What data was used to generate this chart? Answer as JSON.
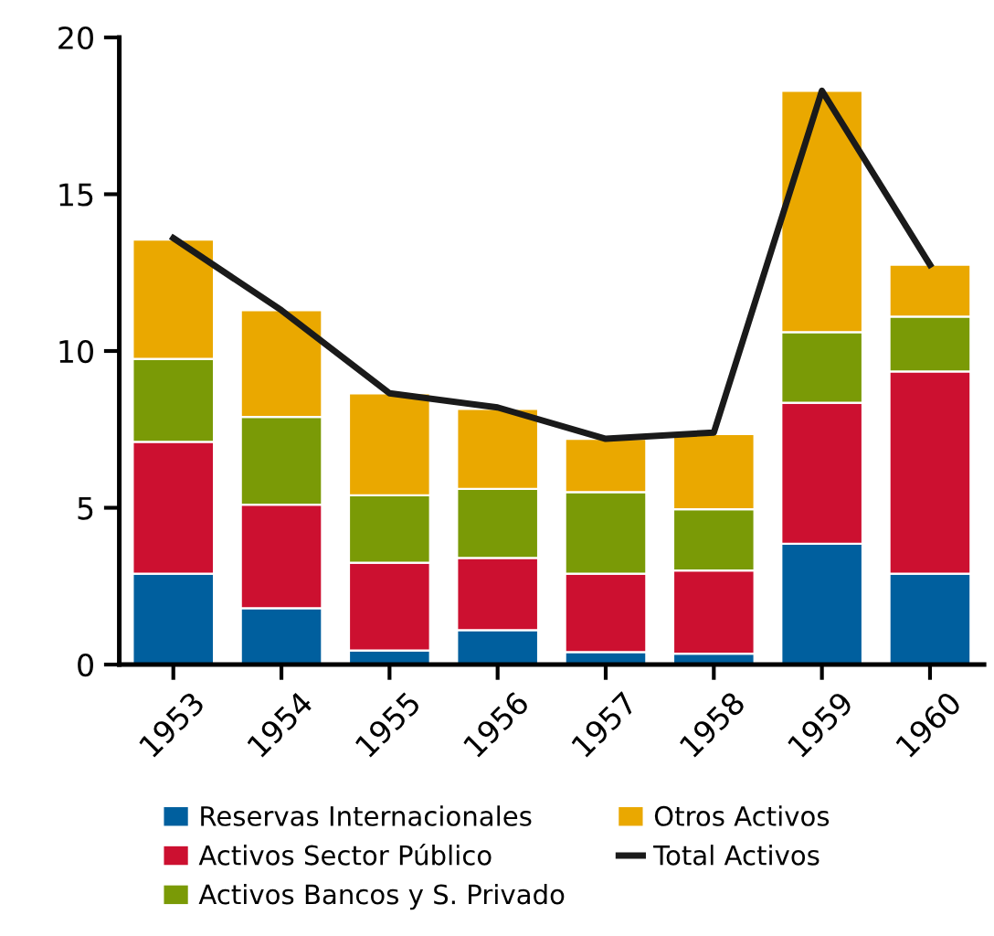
{
  "chart_data": {
    "type": "bar",
    "stacked": true,
    "categories": [
      "1953",
      "1954",
      "1955",
      "1956",
      "1957",
      "1958",
      "1959",
      "1960"
    ],
    "ylim": [
      0,
      20
    ],
    "yticks": [
      0,
      5,
      10,
      15,
      20
    ],
    "grid": false,
    "legend": "bottom",
    "series": [
      {
        "name": "Reservas Internacionales",
        "color": "#005f9e",
        "values": [
          2.9,
          1.8,
          0.45,
          1.1,
          0.4,
          0.35,
          3.85,
          2.9
        ]
      },
      {
        "name": "Activos Sector Público",
        "color": "#cc1030",
        "values": [
          4.2,
          3.3,
          2.8,
          2.3,
          2.5,
          2.65,
          4.5,
          6.45
        ]
      },
      {
        "name": "Activos Bancos y S. Privado",
        "color": "#7a9a06",
        "values": [
          2.65,
          2.8,
          2.15,
          2.2,
          2.6,
          1.95,
          2.25,
          1.75
        ]
      },
      {
        "name": "Otros Activos",
        "color": "#eaa800",
        "values": [
          3.8,
          3.4,
          3.25,
          2.55,
          1.7,
          2.4,
          7.7,
          1.65
        ]
      },
      {
        "name": "Total Activos",
        "type": "line",
        "color": "#1a1a1a",
        "values": [
          13.6,
          11.3,
          8.65,
          8.2,
          7.2,
          7.4,
          18.3,
          12.75
        ]
      }
    ]
  }
}
